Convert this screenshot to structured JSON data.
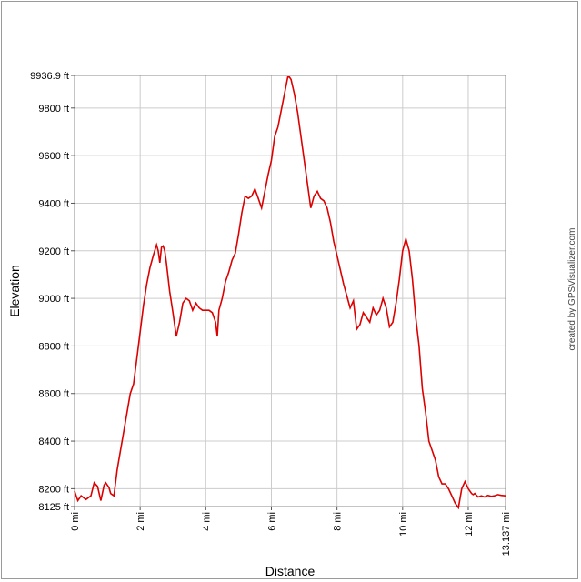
{
  "chart_data": {
    "type": "line",
    "title": "",
    "xlabel": "Distance",
    "ylabel": "Elevation",
    "credit": "created by GPSVisualizer.com",
    "line_color": "#dd0000",
    "grid_color": "#cccccc",
    "grid": true,
    "xlim": [
      0,
      13.137
    ],
    "ylim": [
      8125,
      9936.9
    ],
    "x_unit": "mi",
    "y_unit": "ft",
    "y_ticks": [
      {
        "value": 8125,
        "label": "8125 ft"
      },
      {
        "value": 8200,
        "label": "8200 ft"
      },
      {
        "value": 8400,
        "label": "8400 ft"
      },
      {
        "value": 8600,
        "label": "8600 ft"
      },
      {
        "value": 8800,
        "label": "8800 ft"
      },
      {
        "value": 9000,
        "label": "9000 ft"
      },
      {
        "value": 9200,
        "label": "9200 ft"
      },
      {
        "value": 9400,
        "label": "9400 ft"
      },
      {
        "value": 9600,
        "label": "9600 ft"
      },
      {
        "value": 9800,
        "label": "9800 ft"
      },
      {
        "value": 9936.9,
        "label": "9936.9 ft"
      }
    ],
    "x_ticks": [
      {
        "value": 0,
        "label": "0 mi"
      },
      {
        "value": 2,
        "label": "2 mi"
      },
      {
        "value": 4,
        "label": "4 mi"
      },
      {
        "value": 6,
        "label": "6 mi"
      },
      {
        "value": 8,
        "label": "8 mi"
      },
      {
        "value": 10,
        "label": "10 mi"
      },
      {
        "value": 12,
        "label": "12 mi"
      },
      {
        "value": 13.137,
        "label": "13.137 mi"
      }
    ],
    "series": [
      {
        "x": [
          0,
          0.1,
          0.2,
          0.35,
          0.5,
          0.6,
          0.7,
          0.8,
          0.9,
          0.95,
          1.05,
          1.1,
          1.2,
          1.3,
          1.4,
          1.5,
          1.6,
          1.7,
          1.8,
          1.9,
          2.0,
          2.1,
          2.2,
          2.3,
          2.4,
          2.5,
          2.55,
          2.6,
          2.65,
          2.7,
          2.75,
          2.8,
          2.9,
          3.0,
          3.1,
          3.2,
          3.3,
          3.4,
          3.5,
          3.6,
          3.7,
          3.8,
          3.9,
          4.0,
          4.1,
          4.2,
          4.3,
          4.35,
          4.4,
          4.5,
          4.6,
          4.7,
          4.8,
          4.9,
          5.0,
          5.1,
          5.2,
          5.3,
          5.4,
          5.5,
          5.6,
          5.7,
          5.8,
          5.9,
          6.0,
          6.1,
          6.2,
          6.3,
          6.4,
          6.5,
          6.55,
          6.6,
          6.7,
          6.8,
          6.9,
          7.0,
          7.1,
          7.2,
          7.3,
          7.4,
          7.5,
          7.6,
          7.7,
          7.8,
          7.9,
          8.0,
          8.1,
          8.2,
          8.3,
          8.4,
          8.5,
          8.6,
          8.7,
          8.8,
          8.9,
          9.0,
          9.1,
          9.2,
          9.3,
          9.4,
          9.5,
          9.6,
          9.7,
          9.8,
          9.9,
          10.0,
          10.1,
          10.2,
          10.3,
          10.4,
          10.5,
          10.6,
          10.7,
          10.8,
          10.9,
          11.0,
          11.1,
          11.2,
          11.3,
          11.4,
          11.5,
          11.6,
          11.7,
          11.8,
          11.9,
          12.0,
          12.1,
          12.15,
          12.2,
          12.3,
          12.4,
          12.5,
          12.6,
          12.7,
          12.8,
          12.9,
          13.0,
          13.137
        ],
        "y": [
          8190,
          8150,
          8170,
          8155,
          8170,
          8225,
          8210,
          8150,
          8215,
          8225,
          8205,
          8180,
          8170,
          8280,
          8360,
          8440,
          8520,
          8600,
          8640,
          8750,
          8860,
          8970,
          9060,
          9130,
          9180,
          9225,
          9200,
          9150,
          9215,
          9220,
          9200,
          9150,
          9030,
          8940,
          8840,
          8900,
          8980,
          9000,
          8990,
          8950,
          8980,
          8960,
          8950,
          8950,
          8950,
          8940,
          8900,
          8840,
          8950,
          9000,
          9070,
          9110,
          9160,
          9190,
          9270,
          9360,
          9430,
          9420,
          9430,
          9460,
          9420,
          9380,
          9450,
          9520,
          9580,
          9680,
          9720,
          9790,
          9860,
          9930,
          9930,
          9920,
          9860,
          9780,
          9680,
          9580,
          9480,
          9380,
          9430,
          9450,
          9420,
          9410,
          9380,
          9320,
          9240,
          9180,
          9120,
          9060,
          9010,
          8960,
          8990,
          8870,
          8890,
          8940,
          8920,
          8900,
          8960,
          8930,
          8950,
          9000,
          8960,
          8880,
          8900,
          8980,
          9080,
          9200,
          9250,
          9200,
          9080,
          8920,
          8800,
          8620,
          8520,
          8400,
          8360,
          8320,
          8250,
          8220,
          8220,
          8200,
          8170,
          8140,
          8120,
          8200,
          8230,
          8200,
          8180,
          8175,
          8180,
          8165,
          8170,
          8165,
          8172,
          8168,
          8170,
          8175,
          8172,
          8170
        ]
      }
    ]
  }
}
